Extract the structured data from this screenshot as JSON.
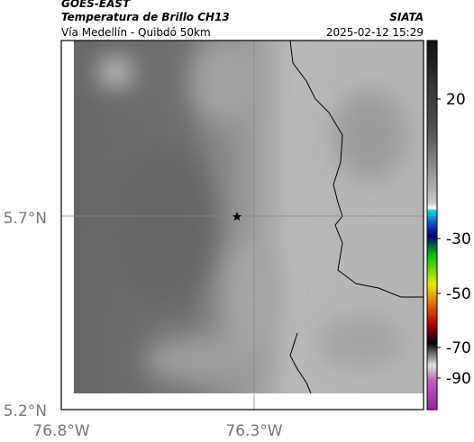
{
  "header": {
    "title": "GOES-EAST",
    "subtitle": "Temperatura de Brillo CH13",
    "route": "Vía Medellín - Quibdó 50km",
    "source": "SIATA",
    "timestamp": "2025-02-12 15:29"
  },
  "map": {
    "lat_labels": [
      "5.7°N",
      "5.2°N"
    ],
    "lon_labels": [
      "76.8°W",
      "76.3°W"
    ]
  },
  "colorbar": {
    "ticks": [
      "20",
      "-30",
      "-50",
      "-70",
      "-90"
    ]
  }
}
